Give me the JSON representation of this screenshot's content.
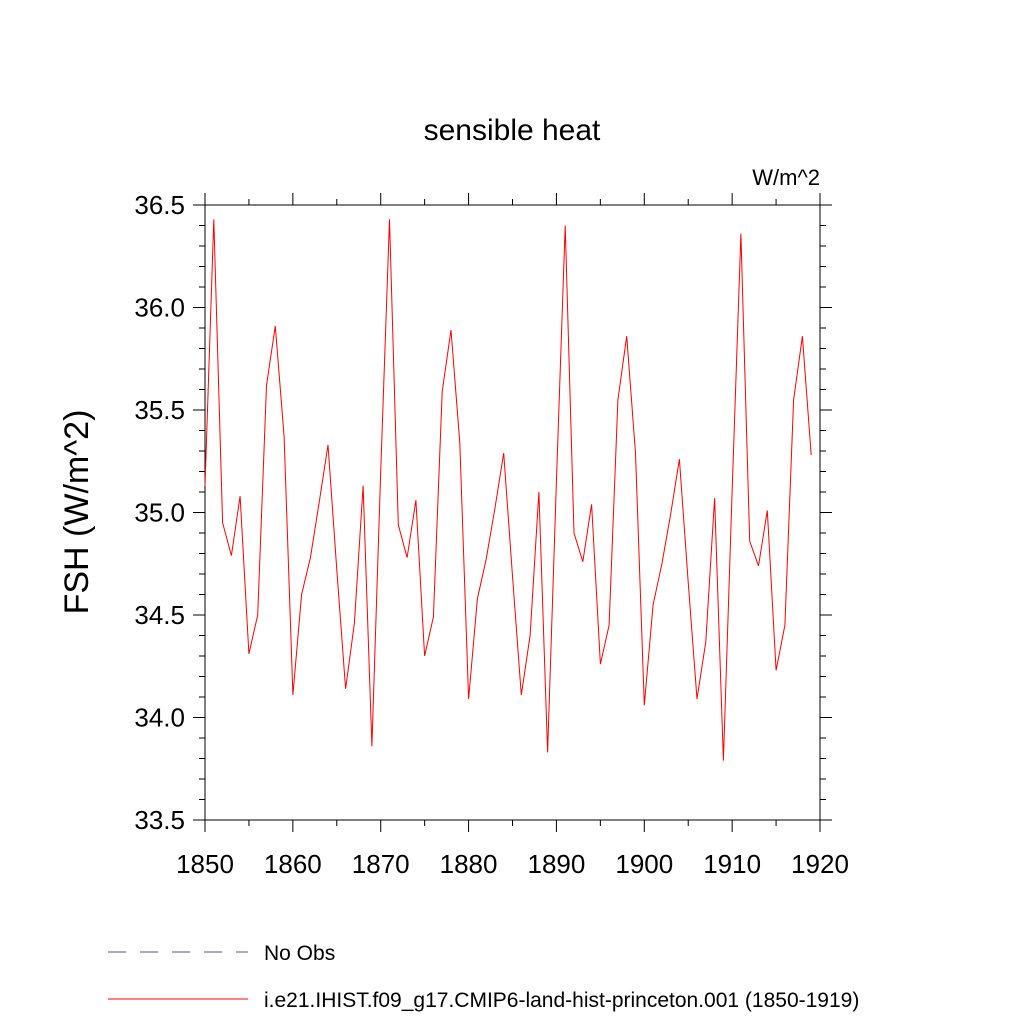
{
  "chart_data": {
    "type": "line",
    "title": "sensible heat",
    "units": "W/m^2",
    "ylabel": "FSH  (W/m^2)",
    "xlabel": "",
    "xlim": [
      1850,
      1920
    ],
    "ylim": [
      33.5,
      36.5
    ],
    "xticks": [
      "1850",
      "1860",
      "1870",
      "1880",
      "1890",
      "1900",
      "1910",
      "1920"
    ],
    "yticks": [
      "33.5",
      "34.0",
      "34.5",
      "35.0",
      "35.5",
      "36.0",
      "36.5"
    ],
    "x": [
      1850,
      1851,
      1852,
      1853,
      1854,
      1855,
      1856,
      1857,
      1858,
      1859,
      1860,
      1861,
      1862,
      1863,
      1864,
      1865,
      1866,
      1867,
      1868,
      1869,
      1870,
      1871,
      1872,
      1873,
      1874,
      1875,
      1876,
      1877,
      1878,
      1879,
      1880,
      1881,
      1882,
      1883,
      1884,
      1885,
      1886,
      1887,
      1888,
      1889,
      1890,
      1891,
      1892,
      1893,
      1894,
      1895,
      1896,
      1897,
      1898,
      1899,
      1900,
      1901,
      1902,
      1903,
      1904,
      1905,
      1906,
      1907,
      1908,
      1909,
      1910,
      1911,
      1912,
      1913,
      1914,
      1915,
      1916,
      1917,
      1918,
      1919
    ],
    "series": [
      {
        "name": "i.e21.IHIST.f09_g17.CMIP6-land-hist-princeton.001 (1850-1919)",
        "color": "#ff0000",
        "values": [
          35.13,
          36.43,
          34.95,
          34.79,
          35.08,
          34.31,
          34.5,
          35.62,
          35.91,
          35.37,
          34.11,
          34.6,
          34.78,
          35.05,
          35.33,
          34.72,
          34.14,
          34.46,
          35.13,
          33.86,
          35.2,
          36.43,
          34.94,
          34.78,
          35.06,
          34.3,
          34.49,
          35.59,
          35.89,
          35.34,
          34.09,
          34.58,
          34.77,
          35.02,
          35.29,
          34.69,
          34.11,
          34.4,
          35.1,
          33.83,
          35.15,
          36.4,
          34.9,
          34.76,
          35.04,
          34.26,
          34.45,
          35.55,
          35.86,
          35.29,
          34.06,
          34.55,
          34.75,
          34.99,
          35.26,
          34.66,
          34.09,
          34.37,
          35.07,
          33.79,
          35.1,
          36.36,
          34.86,
          34.74,
          35.01,
          34.23,
          34.45,
          35.55,
          35.86,
          35.28
        ]
      }
    ],
    "legend": [
      {
        "label": "No Obs",
        "color": "#5a4ea0",
        "style": "dashed"
      },
      {
        "label": "i.e21.IHIST.f09_g17.CMIP6-land-hist-princeton.001 (1850-1919)",
        "color": "#ff0000",
        "style": "solid"
      }
    ],
    "legend_position": "bottom"
  }
}
